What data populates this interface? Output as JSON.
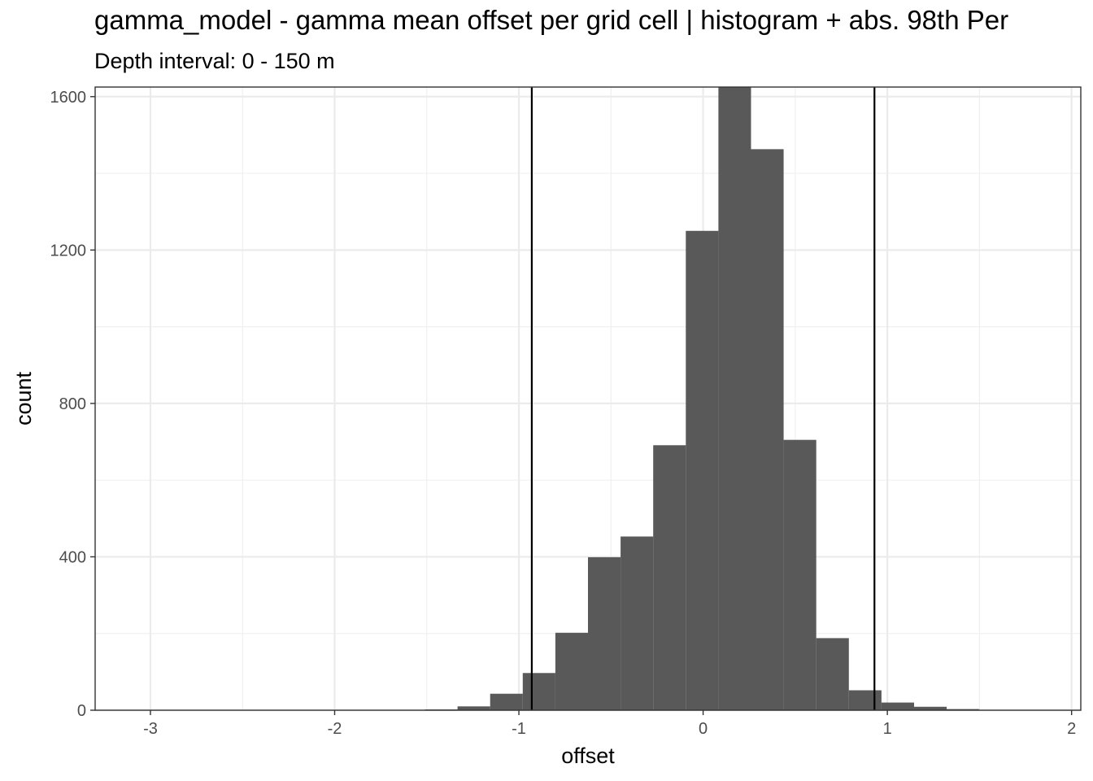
{
  "chart_data": {
    "type": "bar",
    "title": "gamma_model  -  gamma mean offset per grid cell | histogram + abs. 98th Per",
    "subtitle": "Depth interval: 0 - 150 m",
    "xlabel": "offset",
    "ylabel": "count",
    "xlim": [
      -3.3,
      2.05
    ],
    "ylim": [
      0,
      1625
    ],
    "x_ticks": [
      -3,
      -2,
      -1,
      0,
      1,
      2
    ],
    "x_tick_labels": [
      "-3",
      "-2",
      "-1",
      "0",
      "1",
      "2"
    ],
    "y_ticks": [
      0,
      400,
      800,
      1200,
      1600
    ],
    "y_tick_labels": [
      "0",
      "400",
      "800",
      "1200",
      "1600"
    ],
    "bin_width": 0.177,
    "bins": [
      {
        "start": -1.51,
        "end": -1.333,
        "count": 2
      },
      {
        "start": -1.333,
        "end": -1.156,
        "count": 10
      },
      {
        "start": -1.156,
        "end": -0.979,
        "count": 43
      },
      {
        "start": -0.979,
        "end": -0.802,
        "count": 97
      },
      {
        "start": -0.802,
        "end": -0.625,
        "count": 202
      },
      {
        "start": -0.625,
        "end": -0.448,
        "count": 399
      },
      {
        "start": -0.448,
        "end": -0.271,
        "count": 453
      },
      {
        "start": -0.271,
        "end": -0.094,
        "count": 691
      },
      {
        "start": -0.094,
        "end": 0.083,
        "count": 1250
      },
      {
        "start": 0.083,
        "end": 0.26,
        "count": 1625
      },
      {
        "start": 0.26,
        "end": 0.437,
        "count": 1463
      },
      {
        "start": 0.437,
        "end": 0.614,
        "count": 705
      },
      {
        "start": 0.614,
        "end": 0.791,
        "count": 188
      },
      {
        "start": 0.791,
        "end": 0.968,
        "count": 52
      },
      {
        "start": 0.968,
        "end": 1.145,
        "count": 20
      },
      {
        "start": 1.145,
        "end": 1.322,
        "count": 9
      },
      {
        "start": 1.322,
        "end": 1.499,
        "count": 3
      }
    ],
    "vlines": [
      -0.93,
      0.93
    ],
    "bar_color": "#595959",
    "vline_color": "#000000",
    "grid": true,
    "legend": "none"
  }
}
